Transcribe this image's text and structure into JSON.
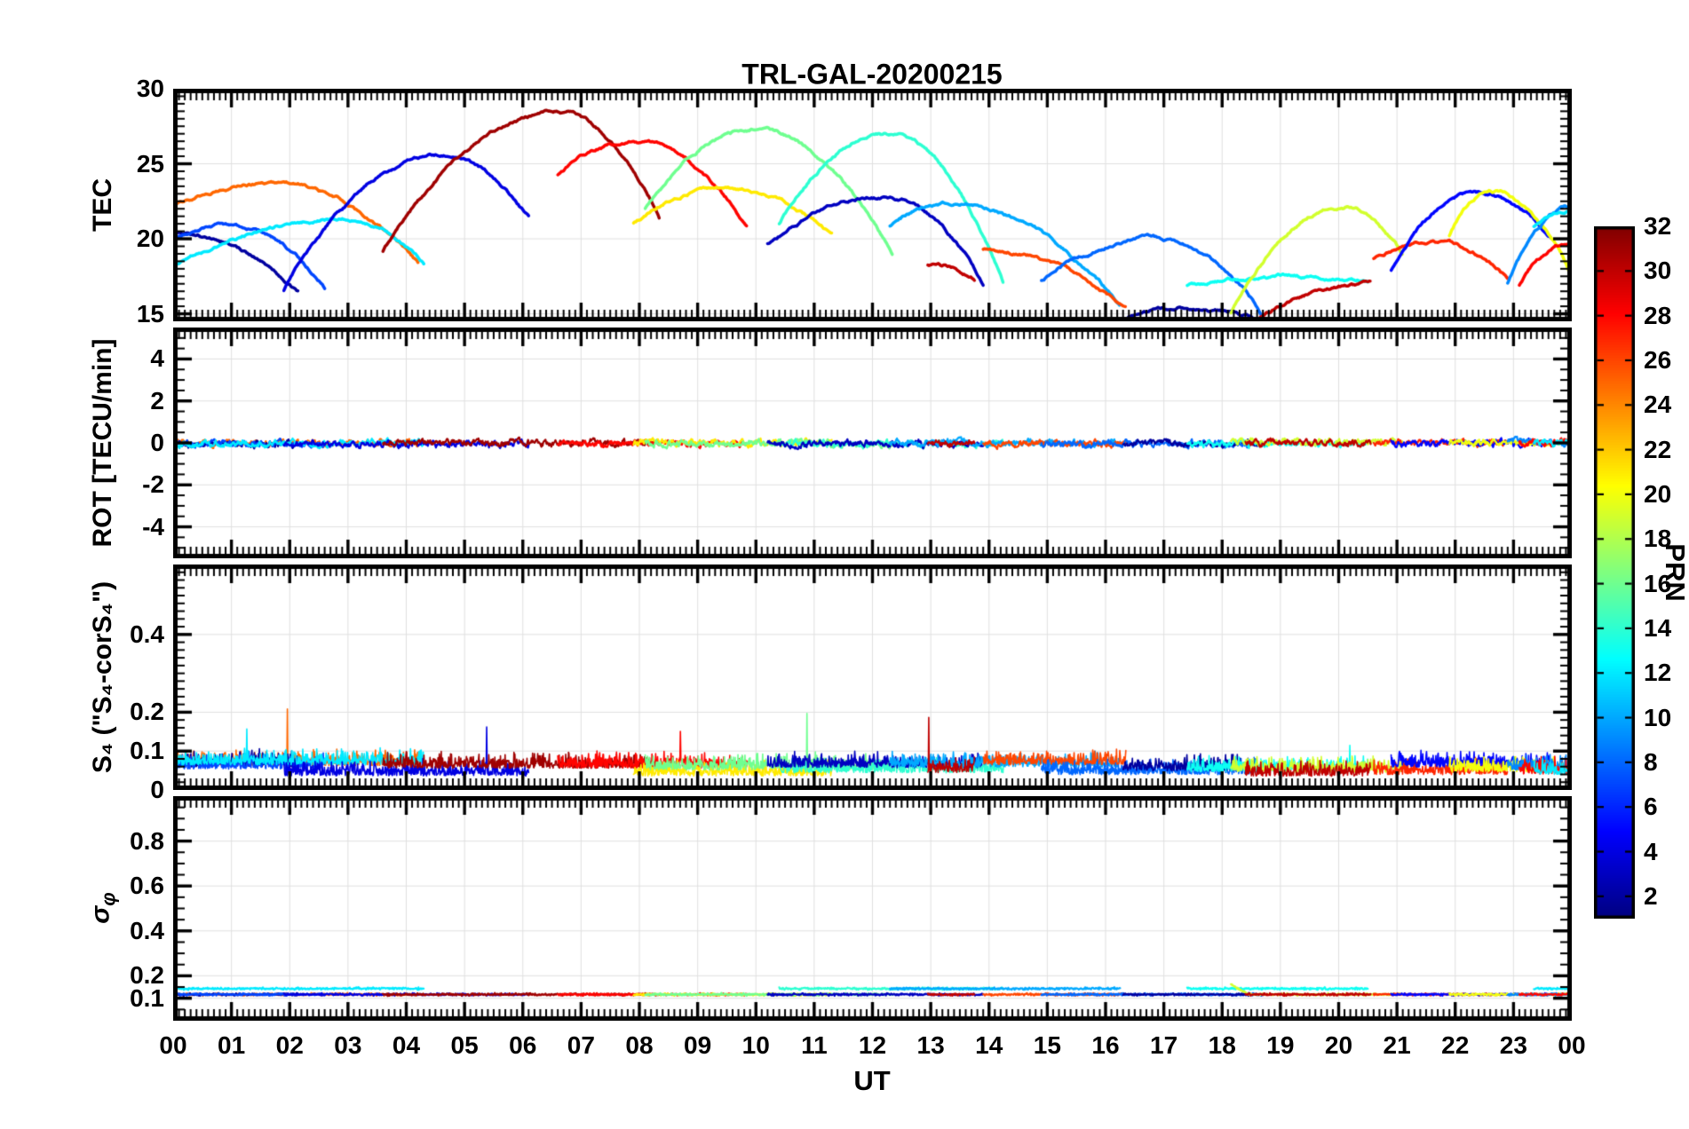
{
  "chart_data": {
    "type": "line",
    "title": "TRL-GAL-20200215",
    "xlabel": "UT",
    "x": {
      "unit": "hours",
      "range": [
        0,
        24
      ],
      "tick_labels": [
        "00",
        "01",
        "02",
        "03",
        "04",
        "05",
        "06",
        "07",
        "08",
        "09",
        "10",
        "11",
        "12",
        "13",
        "14",
        "15",
        "16",
        "17",
        "18",
        "19",
        "20",
        "21",
        "22",
        "23",
        "00"
      ]
    },
    "colorbar": {
      "label": "PRN",
      "vmin": 1,
      "vmax": 32,
      "ticks": [
        2,
        4,
        6,
        8,
        10,
        12,
        14,
        16,
        18,
        20,
        22,
        24,
        26,
        28,
        30,
        32
      ],
      "colormap": "jet"
    },
    "panels": [
      {
        "id": "tec",
        "ylabel": "TEC",
        "ylim": [
          14.5,
          30
        ],
        "yticks": [
          15,
          20,
          25,
          30
        ],
        "ytick_labels": [
          "15",
          "20",
          "25",
          "30"
        ],
        "minor_step": 0.5,
        "grid": true
      },
      {
        "id": "rot",
        "ylabel": "ROT [TECU/min]",
        "ylim": [
          -5.5,
          5.5
        ],
        "yticks": [
          -4,
          -2,
          0,
          2,
          4
        ],
        "ytick_labels": [
          "-4",
          "-2",
          "0",
          "2",
          "4"
        ],
        "minor_step": 0.5,
        "grid": true
      },
      {
        "id": "s4",
        "ylabel": "S₄ (\"S₄-corS₄\")",
        "ylim": [
          0,
          0.58
        ],
        "yticks": [
          0,
          0.1,
          0.2,
          0.4
        ],
        "ytick_labels": [
          "0",
          "0.1",
          "0.2",
          "0.4"
        ],
        "minor_step": 0.02,
        "grid": true
      },
      {
        "id": "sigma",
        "ylabel_main": "σ",
        "ylabel_sub": "φ",
        "ylim": [
          0,
          1.0
        ],
        "yticks": [
          0.1,
          0.2,
          0.4,
          0.6,
          0.8
        ],
        "ytick_labels": [
          "0.1",
          "0.2",
          "0.4",
          "0.6",
          "0.8"
        ],
        "minor_step": 0.05,
        "grid": true
      }
    ],
    "series": [
      {
        "prn": 25,
        "t0": 0.0,
        "tpk": 1.8,
        "t1": 4.2,
        "v0": 22.2,
        "vpk": 23.7,
        "v1": 18.3
      },
      {
        "prn": 2,
        "t0": 0.0,
        "tpk": 0.0,
        "t1": 2.15,
        "v0": 20.4,
        "vpk": 20.4,
        "v1": 16.4
      },
      {
        "prn": 7,
        "t0": 0.0,
        "tpk": 0.9,
        "t1": 2.6,
        "v0": 19.9,
        "vpk": 20.9,
        "v1": 16.9
      },
      {
        "prn": 12,
        "t0": 0.0,
        "tpk": 3.0,
        "t1": 4.3,
        "v0": 18.2,
        "vpk": 21.3,
        "v1": 18.4
      },
      {
        "prn": 4,
        "t0": 1.9,
        "tpk": 4.6,
        "t1": 6.1,
        "v0": 16.6,
        "vpk": 25.5,
        "v1": 21.4
      },
      {
        "prn": 31,
        "t0": 3.6,
        "tpk": 6.6,
        "t1": 8.35,
        "v0": 19.2,
        "vpk": 28.4,
        "v1": 21.4
      },
      {
        "prn": 28,
        "t0": 6.6,
        "tpk": 7.9,
        "t1": 9.85,
        "v0": 24.3,
        "vpk": 26.4,
        "v1": 20.9
      },
      {
        "prn": 21,
        "t0": 7.9,
        "tpk": 9.4,
        "t1": 11.3,
        "v0": 21.0,
        "vpk": 23.4,
        "v1": 20.3
      },
      {
        "prn": 16,
        "t0": 8.1,
        "tpk": 10.0,
        "t1": 12.35,
        "v0": 22.0,
        "vpk": 27.2,
        "v1": 18.9
      },
      {
        "prn": 14,
        "t0": 10.4,
        "tpk": 12.25,
        "t1": 14.25,
        "v0": 21.0,
        "vpk": 27.0,
        "v1": 16.9
      },
      {
        "prn": 3,
        "t0": 10.2,
        "tpk": 12.2,
        "t1": 13.9,
        "v0": 19.7,
        "vpk": 22.8,
        "v1": 17.0
      },
      {
        "prn": 10,
        "t0": 12.3,
        "tpk": 13.3,
        "t1": 16.25,
        "v0": 20.8,
        "vpk": 22.4,
        "v1": 15.6
      },
      {
        "prn": 26,
        "t0": 13.9,
        "tpk": 13.9,
        "t1": 16.35,
        "v0": 19.3,
        "vpk": 19.3,
        "v1": 15.3
      },
      {
        "prn": 30,
        "t0": 12.95,
        "tpk": 12.95,
        "t1": 13.75,
        "v0": 18.3,
        "vpk": 18.3,
        "v1": 17.3
      },
      {
        "prn": 8,
        "t0": 14.9,
        "tpk": 16.9,
        "t1": 18.7,
        "v0": 17.2,
        "vpk": 20.0,
        "v1": 14.9
      },
      {
        "prn": 2,
        "t0": 16.3,
        "tpk": 17.5,
        "t1": 18.6,
        "v0": 14.6,
        "vpk": 15.4,
        "v1": 14.6
      },
      {
        "prn": 13,
        "t0": 17.4,
        "tpk": 19.2,
        "t1": 20.5,
        "v0": 16.9,
        "vpk": 17.5,
        "v1": 17.1
      },
      {
        "prn": 19,
        "t0": 18.15,
        "tpk": 20.1,
        "t1": 21.1,
        "v0": 15.0,
        "vpk": 22.2,
        "v1": 18.9
      },
      {
        "prn": 30,
        "t0": 18.4,
        "tpk": 20.55,
        "t1": 20.55,
        "v0": 14.1,
        "vpk": 17.0,
        "v1": 17.0
      },
      {
        "prn": 27,
        "t0": 20.6,
        "tpk": 21.6,
        "t1": 22.9,
        "v0": 18.7,
        "vpk": 19.8,
        "v1": 17.4
      },
      {
        "prn": 5,
        "t0": 20.9,
        "tpk": 22.35,
        "t1": 23.65,
        "v0": 17.9,
        "vpk": 23.0,
        "v1": 20.2
      },
      {
        "prn": 20,
        "t0": 21.9,
        "tpk": 22.6,
        "t1": 24.0,
        "v0": 20.2,
        "vpk": 23.2,
        "v1": 17.5
      },
      {
        "prn": 9,
        "t0": 22.9,
        "tpk": 24.0,
        "t1": 24.0,
        "v0": 17.0,
        "vpk": 22.0,
        "v1": 22.0
      },
      {
        "prn": 28,
        "t0": 23.1,
        "tpk": 24.0,
        "t1": 24.0,
        "v0": 16.9,
        "vpk": 19.6,
        "v1": 19.6
      },
      {
        "prn": 12,
        "t0": 23.35,
        "tpk": 24.0,
        "t1": 24.0,
        "v0": 20.8,
        "vpk": 21.9,
        "v1": 21.9
      }
    ],
    "rot": {
      "level": 0,
      "noise": 0.1
    },
    "s4": {
      "base": 0.05,
      "noise": 0.04,
      "spike_max": 0.21
    },
    "sigma_phi": {
      "level": 0.12,
      "cyan_level": 0.145,
      "noise": 0.008
    }
  }
}
